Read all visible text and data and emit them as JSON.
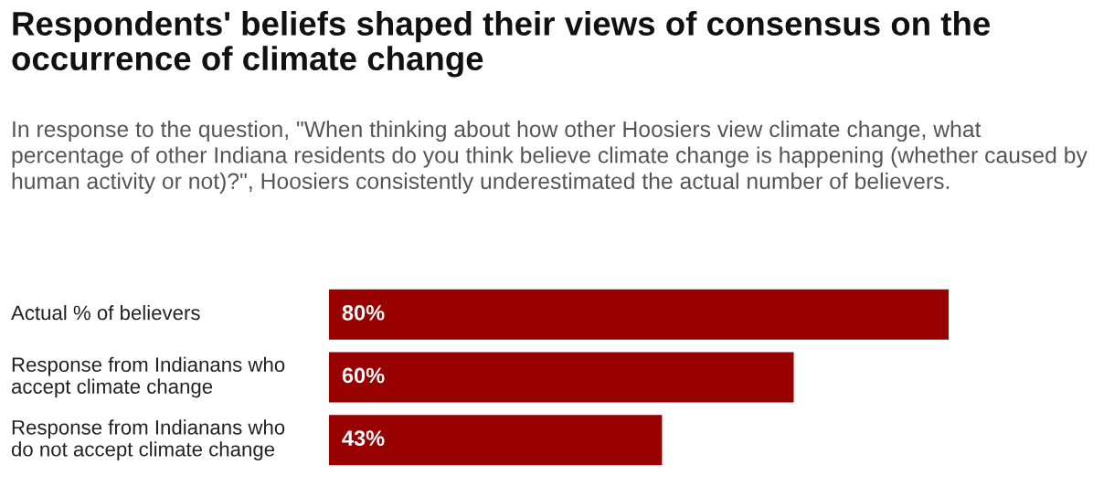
{
  "chart_data": {
    "type": "bar",
    "orientation": "horizontal",
    "title": "Respondents' beliefs shaped their views of consensus on the occurrence of climate change",
    "subtitle": "In response to the question, \"When thinking about how other Hoosiers view climate change, what percentage of other Indiana residents do you think believe climate change is happening (whether caused by human activity or not)?\", Hoosiers consistently underestimated the actual number of believers.",
    "categories": [
      "Actual % of believers",
      "Response from Indianans who\naccept climate change",
      "Response from Indianans who\ndo not accept climate change"
    ],
    "values": [
      80,
      60,
      43
    ],
    "value_labels": [
      "80%",
      "60%",
      "43%"
    ],
    "color": "#990000",
    "tick_labels": false
  }
}
